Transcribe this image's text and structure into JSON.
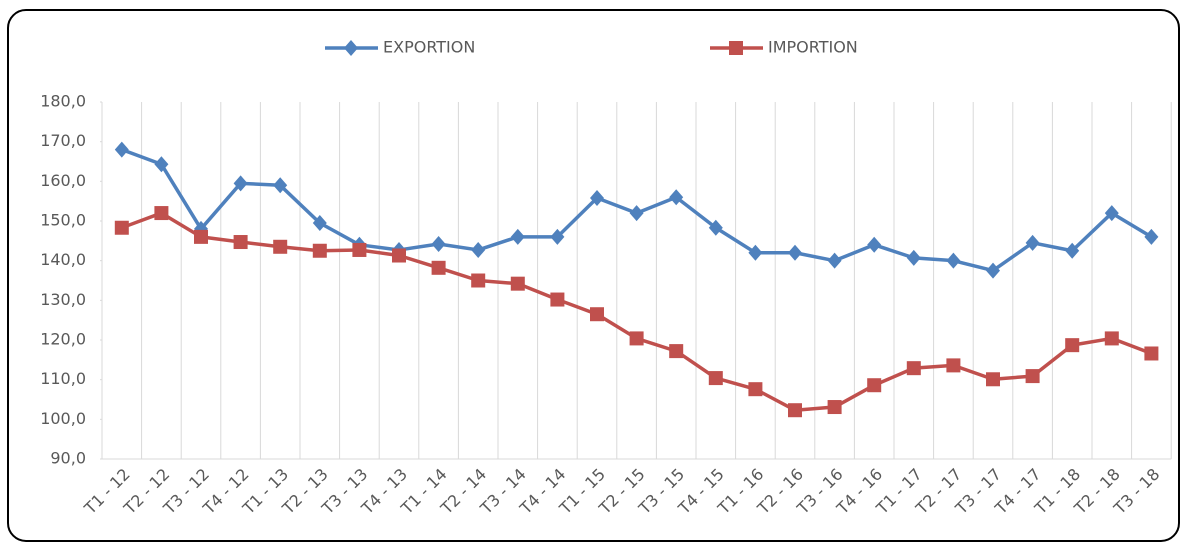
{
  "chart_data": {
    "type": "line",
    "categories": [
      "T1 - 12",
      "T2 - 12",
      "T3 - 12",
      "T4 - 12",
      "T1 - 13",
      "T2 - 13",
      "T3 - 13",
      "T4 - 13",
      "T1 - 14",
      "T2 - 14",
      "T3 - 14",
      "T4 - 14",
      "T1 - 15",
      "T2 - 15",
      "T3 - 15",
      "T4 - 15",
      "T1 - 16",
      "T2 - 16",
      "T3 - 16",
      "T4 - 16",
      "T1 - 17",
      "T2 - 17",
      "T3 - 17",
      "T4 - 17",
      "T1 - 18",
      "T2 - 18",
      "T3 - 18"
    ],
    "series": [
      {
        "name": "EXPORTION",
        "color": "#4f81bd",
        "marker": "diamond",
        "values": [
          168,
          164.3,
          148,
          159.5,
          159,
          149.5,
          144,
          142.7,
          144.2,
          142.7,
          146,
          146,
          155.8,
          152,
          156,
          148.3,
          142,
          142,
          140,
          144,
          140.7,
          140,
          137.5,
          144.5,
          142.5,
          152,
          146
        ]
      },
      {
        "name": "IMPORTION",
        "color": "#c0504d",
        "marker": "square",
        "values": [
          148.3,
          152,
          146,
          144.7,
          143.5,
          142.5,
          142.7,
          141.3,
          138.2,
          135,
          134.2,
          130.2,
          126.5,
          120.4,
          117.2,
          110.4,
          107.6,
          102.3,
          103.1,
          108.6,
          112.9,
          113.6,
          110.1,
          110.9,
          118.7,
          120.4,
          116.6
        ]
      }
    ],
    "ylim": [
      90,
      180
    ],
    "yticks": [
      {
        "value": 90,
        "label": "90,0"
      },
      {
        "value": 100,
        "label": "100,0"
      },
      {
        "value": 110,
        "label": "110,0"
      },
      {
        "value": 120,
        "label": "120,0"
      },
      {
        "value": 130,
        "label": "130,0"
      },
      {
        "value": 140,
        "label": "140,0"
      },
      {
        "value": 150,
        "label": "150,0"
      },
      {
        "value": 160,
        "label": "160,0"
      },
      {
        "value": 170,
        "label": "170,0"
      },
      {
        "value": 180,
        "label": "180,0"
      }
    ],
    "grid": "vertical",
    "legend": "top"
  }
}
